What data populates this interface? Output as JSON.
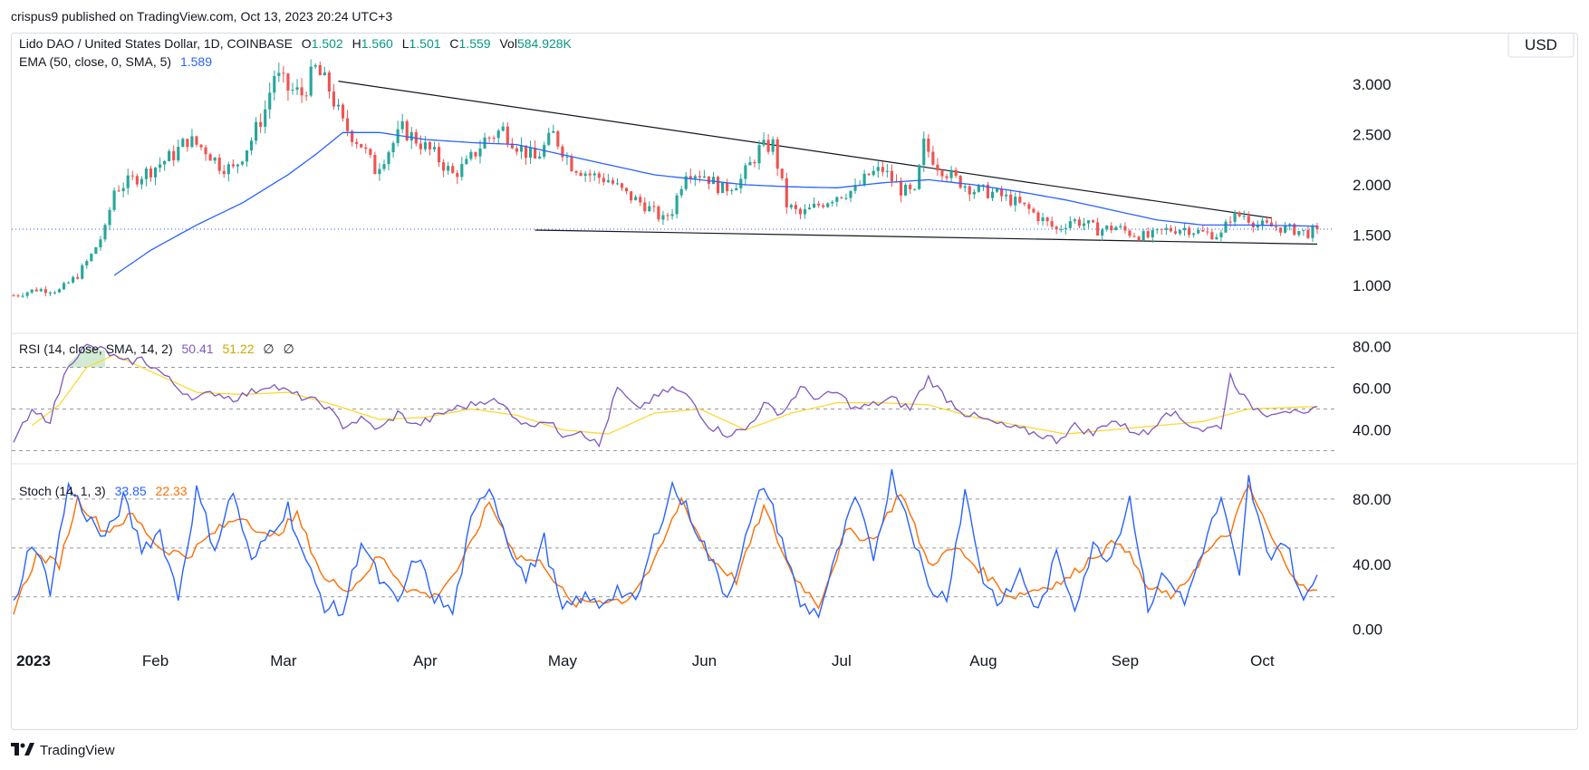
{
  "publisher_line": "crispus9 published on TradingView.com, Oct 13, 2023 20:24 UTC+3",
  "footer_brand": "TradingView",
  "currency_button": "USD",
  "colors": {
    "up": "#26a69a",
    "down": "#ef5350",
    "ema": "#2962ff",
    "rsi": "#7e57c2",
    "rsi_ma": "#fdd835",
    "stoch_k": "#2962ff",
    "stoch_d": "#ff6d00",
    "trendline": "#131722",
    "grid": "#b2b5be",
    "price_line": "#2962ff"
  },
  "main_header": {
    "symbol": "Lido DAO / United States Dollar, 1D, COINBASE",
    "o_label": "O",
    "o_value": "1.502",
    "h_label": "H",
    "h_value": "1.560",
    "l_label": "L",
    "l_value": "1.501",
    "c_label": "C",
    "c_value": "1.559",
    "vol_label": "Vol",
    "vol_value": "584.928K",
    "ema_label": "EMA (50, close, 0, SMA, 5)",
    "ema_value": "1.589"
  },
  "rsi_header": {
    "label": "RSI (14, close, SMA, 14, 2)",
    "rsi_value": "50.41",
    "ma_value": "51.22",
    "extra1": "∅",
    "extra2": "∅"
  },
  "stoch_header": {
    "label": "Stoch (14, 1, 3)",
    "k_value": "33.85",
    "d_value": "22.33"
  },
  "chart_data": {
    "type": "candlestick",
    "title": "Lido DAO / United States Dollar, 1D, COINBASE",
    "x_axis": {
      "labels": [
        "2023",
        "Feb",
        "Mar",
        "Apr",
        "May",
        "Jun",
        "Jul",
        "Aug",
        "Sep",
        "Oct"
      ],
      "label_day_index": [
        0,
        31,
        59,
        90,
        120,
        151,
        181,
        212,
        243,
        273
      ],
      "total_days": 286
    },
    "price_axis": {
      "ticks": [
        "3.000",
        "2.500",
        "2.000",
        "1.500",
        "1.000"
      ],
      "ylim": [
        0.55,
        3.45
      ],
      "current_price_line": 1.559
    },
    "price_anchors": [
      [
        0,
        0.9
      ],
      [
        5,
        0.96
      ],
      [
        10,
        0.95
      ],
      [
        14,
        1.1
      ],
      [
        17,
        1.3
      ],
      [
        20,
        1.55
      ],
      [
        22,
        1.95
      ],
      [
        26,
        2.05
      ],
      [
        30,
        2.15
      ],
      [
        35,
        2.3
      ],
      [
        38,
        2.45
      ],
      [
        42,
        2.35
      ],
      [
        45,
        2.2
      ],
      [
        48,
        2.15
      ],
      [
        52,
        2.45
      ],
      [
        55,
        2.75
      ],
      [
        57,
        3.1
      ],
      [
        60,
        2.95
      ],
      [
        63,
        2.9
      ],
      [
        66,
        3.15
      ],
      [
        69,
        2.95
      ],
      [
        72,
        2.6
      ],
      [
        76,
        2.4
      ],
      [
        79,
        2.15
      ],
      [
        82,
        2.35
      ],
      [
        85,
        2.55
      ],
      [
        88,
        2.45
      ],
      [
        92,
        2.3
      ],
      [
        96,
        2.1
      ],
      [
        99,
        2.2
      ],
      [
        103,
        2.45
      ],
      [
        107,
        2.55
      ],
      [
        110,
        2.4
      ],
      [
        114,
        2.25
      ],
      [
        118,
        2.5
      ],
      [
        122,
        2.2
      ],
      [
        126,
        2.1
      ],
      [
        130,
        2.05
      ],
      [
        134,
        1.9
      ],
      [
        138,
        1.8
      ],
      [
        142,
        1.65
      ],
      [
        144,
        1.75
      ],
      [
        147,
        2.15
      ],
      [
        151,
        2.1
      ],
      [
        155,
        1.95
      ],
      [
        159,
        2.05
      ],
      [
        163,
        2.35
      ],
      [
        166,
        2.4
      ],
      [
        169,
        1.8
      ],
      [
        172,
        1.7
      ],
      [
        176,
        1.8
      ],
      [
        180,
        1.9
      ],
      [
        184,
        1.95
      ],
      [
        187,
        2.1
      ],
      [
        190,
        2.15
      ],
      [
        194,
        1.95
      ],
      [
        197,
        1.9
      ],
      [
        199,
        2.4
      ],
      [
        202,
        2.2
      ],
      [
        206,
        2.05
      ],
      [
        210,
        1.95
      ],
      [
        214,
        1.92
      ],
      [
        218,
        1.85
      ],
      [
        222,
        1.75
      ],
      [
        225,
        1.65
      ],
      [
        228,
        1.55
      ],
      [
        231,
        1.65
      ],
      [
        234,
        1.62
      ],
      [
        237,
        1.55
      ],
      [
        241,
        1.58
      ],
      [
        244,
        1.52
      ],
      [
        248,
        1.48
      ],
      [
        252,
        1.55
      ],
      [
        256,
        1.57
      ],
      [
        260,
        1.52
      ],
      [
        264,
        1.5
      ],
      [
        266,
        1.68
      ],
      [
        269,
        1.7
      ],
      [
        272,
        1.6
      ],
      [
        276,
        1.58
      ],
      [
        280,
        1.55
      ],
      [
        283,
        1.52
      ],
      [
        285,
        1.559
      ]
    ],
    "ema50_anchors": [
      [
        22,
        1.1
      ],
      [
        30,
        1.35
      ],
      [
        40,
        1.6
      ],
      [
        50,
        1.82
      ],
      [
        60,
        2.1
      ],
      [
        66,
        2.3
      ],
      [
        72,
        2.52
      ],
      [
        80,
        2.52
      ],
      [
        90,
        2.45
      ],
      [
        100,
        2.42
      ],
      [
        110,
        2.4
      ],
      [
        120,
        2.3
      ],
      [
        130,
        2.2
      ],
      [
        140,
        2.1
      ],
      [
        150,
        2.05
      ],
      [
        160,
        2.0
      ],
      [
        170,
        1.98
      ],
      [
        180,
        1.97
      ],
      [
        190,
        2.02
      ],
      [
        200,
        2.05
      ],
      [
        210,
        2.0
      ],
      [
        220,
        1.93
      ],
      [
        230,
        1.85
      ],
      [
        240,
        1.75
      ],
      [
        250,
        1.65
      ],
      [
        260,
        1.6
      ],
      [
        270,
        1.6
      ],
      [
        285,
        1.589
      ]
    ],
    "trendline_upper": [
      [
        71,
        3.03
      ],
      [
        275,
        1.67
      ]
    ],
    "trendline_lower": [
      [
        114,
        1.55
      ],
      [
        285,
        1.41
      ]
    ],
    "rsi": {
      "ticks": [
        "80.00",
        "60.00",
        "40.00"
      ],
      "ylim": [
        25,
        85
      ],
      "bands": [
        70,
        50,
        30
      ],
      "anchors": [
        [
          0,
          35
        ],
        [
          4,
          48
        ],
        [
          8,
          45
        ],
        [
          12,
          72
        ],
        [
          16,
          80
        ],
        [
          20,
          78
        ],
        [
          24,
          72
        ],
        [
          28,
          74
        ],
        [
          32,
          68
        ],
        [
          36,
          60
        ],
        [
          40,
          55
        ],
        [
          44,
          58
        ],
        [
          48,
          55
        ],
        [
          52,
          58
        ],
        [
          56,
          62
        ],
        [
          60,
          58
        ],
        [
          64,
          55
        ],
        [
          68,
          52
        ],
        [
          72,
          42
        ],
        [
          76,
          45
        ],
        [
          80,
          40
        ],
        [
          84,
          48
        ],
        [
          88,
          42
        ],
        [
          92,
          46
        ],
        [
          96,
          50
        ],
        [
          100,
          52
        ],
        [
          104,
          55
        ],
        [
          108,
          50
        ],
        [
          112,
          42
        ],
        [
          116,
          45
        ],
        [
          120,
          38
        ],
        [
          124,
          40
        ],
        [
          128,
          32
        ],
        [
          132,
          60
        ],
        [
          136,
          50
        ],
        [
          140,
          55
        ],
        [
          144,
          60
        ],
        [
          148,
          55
        ],
        [
          152,
          42
        ],
        [
          156,
          38
        ],
        [
          160,
          40
        ],
        [
          164,
          52
        ],
        [
          168,
          48
        ],
        [
          172,
          60
        ],
        [
          176,
          55
        ],
        [
          180,
          58
        ],
        [
          184,
          50
        ],
        [
          188,
          52
        ],
        [
          192,
          55
        ],
        [
          196,
          50
        ],
        [
          200,
          65
        ],
        [
          204,
          55
        ],
        [
          208,
          48
        ],
        [
          212,
          45
        ],
        [
          216,
          42
        ],
        [
          220,
          40
        ],
        [
          224,
          38
        ],
        [
          228,
          35
        ],
        [
          232,
          42
        ],
        [
          236,
          38
        ],
        [
          240,
          45
        ],
        [
          244,
          40
        ],
        [
          248,
          38
        ],
        [
          252,
          50
        ],
        [
          256,
          44
        ],
        [
          260,
          40
        ],
        [
          264,
          42
        ],
        [
          266,
          66
        ],
        [
          270,
          52
        ],
        [
          274,
          48
        ],
        [
          278,
          50
        ],
        [
          282,
          46
        ],
        [
          285,
          50.41
        ]
      ],
      "ma_anchors": [
        [
          4,
          42
        ],
        [
          10,
          52
        ],
        [
          16,
          70
        ],
        [
          22,
          76
        ],
        [
          30,
          68
        ],
        [
          40,
          58
        ],
        [
          50,
          57
        ],
        [
          60,
          58
        ],
        [
          70,
          52
        ],
        [
          80,
          45
        ],
        [
          90,
          46
        ],
        [
          100,
          50
        ],
        [
          110,
          47
        ],
        [
          120,
          40
        ],
        [
          130,
          38
        ],
        [
          140,
          48
        ],
        [
          150,
          50
        ],
        [
          160,
          40
        ],
        [
          170,
          48
        ],
        [
          180,
          53
        ],
        [
          190,
          53
        ],
        [
          200,
          52
        ],
        [
          210,
          46
        ],
        [
          220,
          42
        ],
        [
          230,
          38
        ],
        [
          240,
          40
        ],
        [
          250,
          42
        ],
        [
          260,
          44
        ],
        [
          270,
          50
        ],
        [
          285,
          51.22
        ]
      ],
      "overbought_fill_days": [
        12,
        20
      ]
    },
    "stoch": {
      "ticks": [
        "80.00",
        "40.00",
        "0.00"
      ],
      "ylim": [
        -8,
        100
      ],
      "bands": [
        80,
        50,
        20
      ],
      "k_anchors": [
        [
          0,
          15
        ],
        [
          4,
          55
        ],
        [
          8,
          25
        ],
        [
          12,
          88
        ],
        [
          16,
          70
        ],
        [
          20,
          55
        ],
        [
          24,
          80
        ],
        [
          28,
          50
        ],
        [
          32,
          60
        ],
        [
          36,
          20
        ],
        [
          40,
          85
        ],
        [
          44,
          50
        ],
        [
          48,
          85
        ],
        [
          52,
          40
        ],
        [
          56,
          60
        ],
        [
          60,
          75
        ],
        [
          64,
          40
        ],
        [
          68,
          15
        ],
        [
          72,
          10
        ],
        [
          76,
          55
        ],
        [
          80,
          30
        ],
        [
          84,
          15
        ],
        [
          88,
          45
        ],
        [
          92,
          20
        ],
        [
          96,
          10
        ],
        [
          100,
          65
        ],
        [
          104,
          90
        ],
        [
          108,
          55
        ],
        [
          112,
          30
        ],
        [
          116,
          55
        ],
        [
          120,
          10
        ],
        [
          124,
          20
        ],
        [
          128,
          15
        ],
        [
          132,
          25
        ],
        [
          136,
          15
        ],
        [
          140,
          55
        ],
        [
          144,
          88
        ],
        [
          148,
          70
        ],
        [
          152,
          45
        ],
        [
          156,
          20
        ],
        [
          160,
          55
        ],
        [
          164,
          90
        ],
        [
          168,
          55
        ],
        [
          172,
          15
        ],
        [
          176,
          10
        ],
        [
          180,
          45
        ],
        [
          184,
          80
        ],
        [
          188,
          45
        ],
        [
          192,
          95
        ],
        [
          196,
          65
        ],
        [
          200,
          25
        ],
        [
          204,
          20
        ],
        [
          208,
          85
        ],
        [
          212,
          30
        ],
        [
          216,
          15
        ],
        [
          220,
          35
        ],
        [
          224,
          10
        ],
        [
          228,
          45
        ],
        [
          232,
          15
        ],
        [
          236,
          50
        ],
        [
          240,
          45
        ],
        [
          244,
          82
        ],
        [
          248,
          15
        ],
        [
          252,
          35
        ],
        [
          256,
          15
        ],
        [
          260,
          50
        ],
        [
          264,
          80
        ],
        [
          268,
          30
        ],
        [
          270,
          92
        ],
        [
          274,
          45
        ],
        [
          278,
          55
        ],
        [
          282,
          15
        ],
        [
          285,
          33.85
        ]
      ],
      "d_anchors": [
        [
          0,
          12
        ],
        [
          5,
          45
        ],
        [
          10,
          40
        ],
        [
          14,
          80
        ],
        [
          20,
          60
        ],
        [
          26,
          70
        ],
        [
          32,
          50
        ],
        [
          38,
          45
        ],
        [
          44,
          60
        ],
        [
          50,
          70
        ],
        [
          56,
          55
        ],
        [
          62,
          70
        ],
        [
          68,
          30
        ],
        [
          74,
          25
        ],
        [
          80,
          45
        ],
        [
          86,
          25
        ],
        [
          92,
          20
        ],
        [
          98,
          40
        ],
        [
          104,
          78
        ],
        [
          110,
          45
        ],
        [
          116,
          40
        ],
        [
          122,
          15
        ],
        [
          128,
          18
        ],
        [
          134,
          18
        ],
        [
          140,
          40
        ],
        [
          146,
          80
        ],
        [
          152,
          45
        ],
        [
          158,
          30
        ],
        [
          164,
          75
        ],
        [
          170,
          35
        ],
        [
          176,
          15
        ],
        [
          182,
          60
        ],
        [
          188,
          55
        ],
        [
          194,
          85
        ],
        [
          200,
          40
        ],
        [
          206,
          50
        ],
        [
          212,
          35
        ],
        [
          218,
          20
        ],
        [
          224,
          25
        ],
        [
          230,
          30
        ],
        [
          236,
          45
        ],
        [
          242,
          55
        ],
        [
          248,
          25
        ],
        [
          254,
          20
        ],
        [
          260,
          45
        ],
        [
          266,
          60
        ],
        [
          270,
          88
        ],
        [
          276,
          50
        ],
        [
          282,
          25
        ],
        [
          285,
          22.33
        ]
      ]
    }
  }
}
